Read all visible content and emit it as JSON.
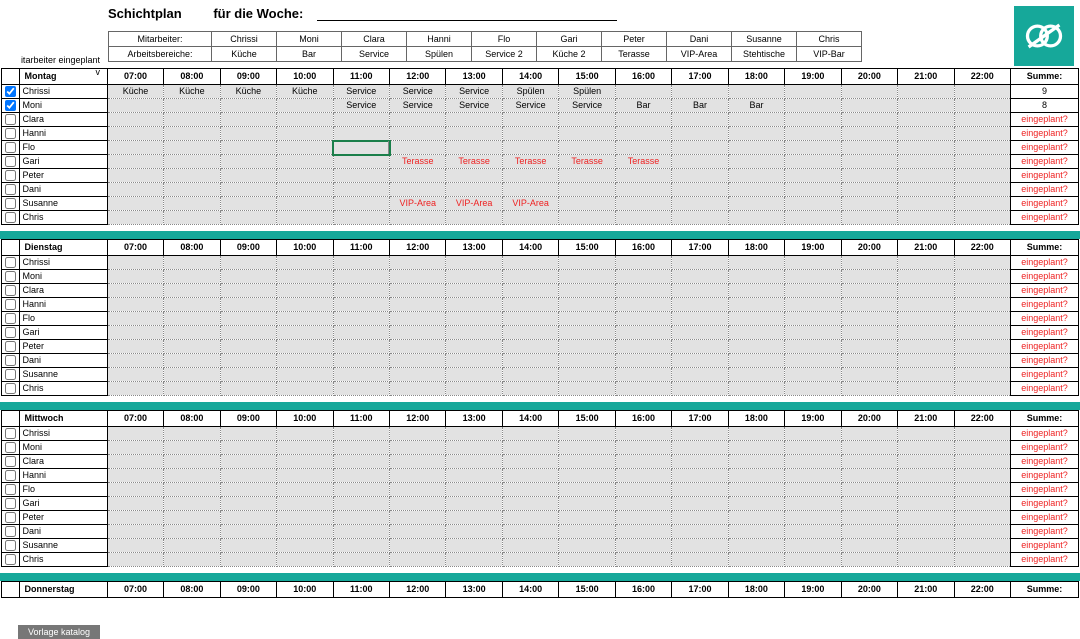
{
  "title": {
    "main": "Schichtplan",
    "week_label": "für die Woche:"
  },
  "legend": {
    "row1_label": "Mitarbeiter:",
    "row2_label": "Arbeitsbereiche:",
    "names": [
      "Chrissi",
      "Moni",
      "Clara",
      "Hanni",
      "Flo",
      "Gari",
      "Peter",
      "Dani",
      "Susanne",
      "Chris"
    ],
    "areas": [
      "Küche",
      "Bar",
      "Service",
      "Spülen",
      "Service 2",
      "Küche 2",
      "Terasse",
      "VIP-Area",
      "Stehtische",
      "VIP-Bar"
    ]
  },
  "side_hint": {
    "l1": "itarbeiter eingeplant",
    "l2": "v"
  },
  "hours": [
    "07:00",
    "08:00",
    "09:00",
    "10:00",
    "11:00",
    "12:00",
    "13:00",
    "14:00",
    "15:00",
    "16:00",
    "17:00",
    "18:00",
    "19:00",
    "20:00",
    "21:00",
    "22:00"
  ],
  "sum_label": "Summe:",
  "not_planned": "eingeplant?",
  "employees": [
    "Chrissi",
    "Moni",
    "Clara",
    "Hanni",
    "Flo",
    "Gari",
    "Peter",
    "Dani",
    "Susanne",
    "Chris"
  ],
  "footer_tab": "Vorlage katalog",
  "colors": {
    "accent": "#16a89a",
    "grid_bg": "#e2e2e2",
    "not_planned": "#e22"
  },
  "days": [
    {
      "name": "Montag",
      "rows": [
        {
          "checked": true,
          "cells": [
            "Küche",
            "Küche",
            "Küche",
            "Küche",
            "Service",
            "Service",
            "Service",
            "Spülen",
            "Spülen",
            "",
            "",
            "",
            "",
            "",
            "",
            ""
          ],
          "red": [],
          "sum": "9",
          "sum_red": false
        },
        {
          "checked": true,
          "cells": [
            "",
            "",
            "",
            "",
            "Service",
            "Service",
            "Service",
            "Service",
            "Service",
            "Bar",
            "Bar",
            "Bar",
            "",
            "",
            "",
            ""
          ],
          "red": [],
          "sum": "8",
          "sum_red": false
        },
        {
          "checked": false,
          "cells": [
            "",
            "",
            "",
            "",
            "",
            "",
            "",
            "",
            "",
            "",
            "",
            "",
            "",
            "",
            "",
            ""
          ],
          "red": [],
          "sum": "eingeplant?",
          "sum_red": true
        },
        {
          "checked": false,
          "cells": [
            "",
            "",
            "",
            "",
            "",
            "",
            "",
            "",
            "",
            "",
            "",
            "",
            "",
            "",
            "",
            ""
          ],
          "red": [],
          "sum": "eingeplant?",
          "sum_red": true
        },
        {
          "checked": false,
          "cells": [
            "",
            "",
            "",
            "",
            "",
            "",
            "",
            "",
            "",
            "",
            "",
            "",
            "",
            "",
            "",
            ""
          ],
          "red": [],
          "sum": "eingeplant?",
          "sum_red": true,
          "selected_col": 4
        },
        {
          "checked": false,
          "cells": [
            "",
            "",
            "",
            "",
            "",
            "Terasse",
            "Terasse",
            "Terasse",
            "Terasse",
            "Terasse",
            "",
            "",
            "",
            "",
            "",
            ""
          ],
          "red": [
            5,
            6,
            7,
            8,
            9
          ],
          "sum": "eingeplant?",
          "sum_red": true
        },
        {
          "checked": false,
          "cells": [
            "",
            "",
            "",
            "",
            "",
            "",
            "",
            "",
            "",
            "",
            "",
            "",
            "",
            "",
            "",
            ""
          ],
          "red": [],
          "sum": "eingeplant?",
          "sum_red": true
        },
        {
          "checked": false,
          "cells": [
            "",
            "",
            "",
            "",
            "",
            "",
            "",
            "",
            "",
            "",
            "",
            "",
            "",
            "",
            "",
            ""
          ],
          "red": [],
          "sum": "eingeplant?",
          "sum_red": true
        },
        {
          "checked": false,
          "cells": [
            "",
            "",
            "",
            "",
            "",
            "VIP-Area",
            "VIP-Area",
            "VIP-Area",
            "",
            "",
            "",
            "",
            "",
            "",
            "",
            ""
          ],
          "red": [
            5,
            6,
            7
          ],
          "sum": "eingeplant?",
          "sum_red": true
        },
        {
          "checked": false,
          "cells": [
            "",
            "",
            "",
            "",
            "",
            "",
            "",
            "",
            "",
            "",
            "",
            "",
            "",
            "",
            "",
            ""
          ],
          "red": [],
          "sum": "eingeplant?",
          "sum_red": true
        }
      ]
    },
    {
      "name": "Dienstag",
      "rows": [
        {
          "checked": false,
          "cells": [
            "",
            "",
            "",
            "",
            "",
            "",
            "",
            "",
            "",
            "",
            "",
            "",
            "",
            "",
            "",
            ""
          ],
          "red": [],
          "sum": "eingeplant?",
          "sum_red": true
        },
        {
          "checked": false,
          "cells": [
            "",
            "",
            "",
            "",
            "",
            "",
            "",
            "",
            "",
            "",
            "",
            "",
            "",
            "",
            "",
            ""
          ],
          "red": [],
          "sum": "eingeplant?",
          "sum_red": true
        },
        {
          "checked": false,
          "cells": [
            "",
            "",
            "",
            "",
            "",
            "",
            "",
            "",
            "",
            "",
            "",
            "",
            "",
            "",
            "",
            ""
          ],
          "red": [],
          "sum": "eingeplant?",
          "sum_red": true
        },
        {
          "checked": false,
          "cells": [
            "",
            "",
            "",
            "",
            "",
            "",
            "",
            "",
            "",
            "",
            "",
            "",
            "",
            "",
            "",
            ""
          ],
          "red": [],
          "sum": "eingeplant?",
          "sum_red": true
        },
        {
          "checked": false,
          "cells": [
            "",
            "",
            "",
            "",
            "",
            "",
            "",
            "",
            "",
            "",
            "",
            "",
            "",
            "",
            "",
            ""
          ],
          "red": [],
          "sum": "eingeplant?",
          "sum_red": true
        },
        {
          "checked": false,
          "cells": [
            "",
            "",
            "",
            "",
            "",
            "",
            "",
            "",
            "",
            "",
            "",
            "",
            "",
            "",
            "",
            ""
          ],
          "red": [],
          "sum": "eingeplant?",
          "sum_red": true
        },
        {
          "checked": false,
          "cells": [
            "",
            "",
            "",
            "",
            "",
            "",
            "",
            "",
            "",
            "",
            "",
            "",
            "",
            "",
            "",
            ""
          ],
          "red": [],
          "sum": "eingeplant?",
          "sum_red": true
        },
        {
          "checked": false,
          "cells": [
            "",
            "",
            "",
            "",
            "",
            "",
            "",
            "",
            "",
            "",
            "",
            "",
            "",
            "",
            "",
            ""
          ],
          "red": [],
          "sum": "eingeplant?",
          "sum_red": true
        },
        {
          "checked": false,
          "cells": [
            "",
            "",
            "",
            "",
            "",
            "",
            "",
            "",
            "",
            "",
            "",
            "",
            "",
            "",
            "",
            ""
          ],
          "red": [],
          "sum": "eingeplant?",
          "sum_red": true
        },
        {
          "checked": false,
          "cells": [
            "",
            "",
            "",
            "",
            "",
            "",
            "",
            "",
            "",
            "",
            "",
            "",
            "",
            "",
            "",
            ""
          ],
          "red": [],
          "sum": "eingeplant?",
          "sum_red": true
        }
      ]
    },
    {
      "name": "Mittwoch",
      "rows": [
        {
          "checked": false,
          "cells": [
            "",
            "",
            "",
            "",
            "",
            "",
            "",
            "",
            "",
            "",
            "",
            "",
            "",
            "",
            "",
            ""
          ],
          "red": [],
          "sum": "eingeplant?",
          "sum_red": true
        },
        {
          "checked": false,
          "cells": [
            "",
            "",
            "",
            "",
            "",
            "",
            "",
            "",
            "",
            "",
            "",
            "",
            "",
            "",
            "",
            ""
          ],
          "red": [],
          "sum": "eingeplant?",
          "sum_red": true
        },
        {
          "checked": false,
          "cells": [
            "",
            "",
            "",
            "",
            "",
            "",
            "",
            "",
            "",
            "",
            "",
            "",
            "",
            "",
            "",
            ""
          ],
          "red": [],
          "sum": "eingeplant?",
          "sum_red": true
        },
        {
          "checked": false,
          "cells": [
            "",
            "",
            "",
            "",
            "",
            "",
            "",
            "",
            "",
            "",
            "",
            "",
            "",
            "",
            "",
            ""
          ],
          "red": [],
          "sum": "eingeplant?",
          "sum_red": true
        },
        {
          "checked": false,
          "cells": [
            "",
            "",
            "",
            "",
            "",
            "",
            "",
            "",
            "",
            "",
            "",
            "",
            "",
            "",
            "",
            ""
          ],
          "red": [],
          "sum": "eingeplant?",
          "sum_red": true
        },
        {
          "checked": false,
          "cells": [
            "",
            "",
            "",
            "",
            "",
            "",
            "",
            "",
            "",
            "",
            "",
            "",
            "",
            "",
            "",
            ""
          ],
          "red": [],
          "sum": "eingeplant?",
          "sum_red": true
        },
        {
          "checked": false,
          "cells": [
            "",
            "",
            "",
            "",
            "",
            "",
            "",
            "",
            "",
            "",
            "",
            "",
            "",
            "",
            "",
            ""
          ],
          "red": [],
          "sum": "eingeplant?",
          "sum_red": true
        },
        {
          "checked": false,
          "cells": [
            "",
            "",
            "",
            "",
            "",
            "",
            "",
            "",
            "",
            "",
            "",
            "",
            "",
            "",
            "",
            ""
          ],
          "red": [],
          "sum": "eingeplant?",
          "sum_red": true
        },
        {
          "checked": false,
          "cells": [
            "",
            "",
            "",
            "",
            "",
            "",
            "",
            "",
            "",
            "",
            "",
            "",
            "",
            "",
            "",
            ""
          ],
          "red": [],
          "sum": "eingeplant?",
          "sum_red": true
        },
        {
          "checked": false,
          "cells": [
            "",
            "",
            "",
            "",
            "",
            "",
            "",
            "",
            "",
            "",
            "",
            "",
            "",
            "",
            "",
            ""
          ],
          "red": [],
          "sum": "eingeplant?",
          "sum_red": true
        }
      ]
    },
    {
      "name": "Donnerstag",
      "rows": []
    }
  ]
}
